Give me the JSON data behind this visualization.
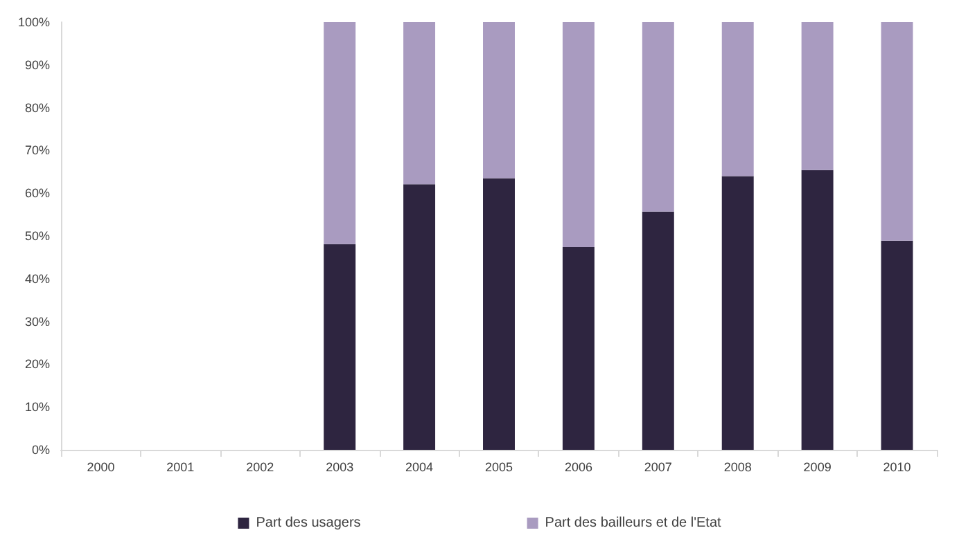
{
  "chart_data": {
    "type": "bar",
    "stacked": true,
    "categories": [
      "2000",
      "2001",
      "2002",
      "2003",
      "2004",
      "2005",
      "2006",
      "2007",
      "2008",
      "2009",
      "2010"
    ],
    "series": [
      {
        "name": "Part des usagers",
        "color": "#2e2540",
        "values": [
          null,
          null,
          null,
          48.1,
          62.1,
          63.5,
          47.4,
          55.7,
          64.0,
          65.4,
          48.9
        ]
      },
      {
        "name": "Part des bailleurs et de l'Etat",
        "color": "#a99bc0",
        "values": [
          null,
          null,
          null,
          51.9,
          37.9,
          36.5,
          52.6,
          44.3,
          36.0,
          34.6,
          51.1
        ]
      }
    ],
    "ylim": [
      0,
      100
    ],
    "yticks": [
      {
        "value": 0,
        "label": "0%"
      },
      {
        "value": 10,
        "label": "10%"
      },
      {
        "value": 20,
        "label": "20%"
      },
      {
        "value": 30,
        "label": "30%"
      },
      {
        "value": 40,
        "label": "40%"
      },
      {
        "value": 50,
        "label": "50%"
      },
      {
        "value": 60,
        "label": "60%"
      },
      {
        "value": 70,
        "label": "70%"
      },
      {
        "value": 80,
        "label": "80%"
      },
      {
        "value": 90,
        "label": "90%"
      },
      {
        "value": 100,
        "label": "100%"
      }
    ],
    "grid": false,
    "legend": "bottom"
  }
}
